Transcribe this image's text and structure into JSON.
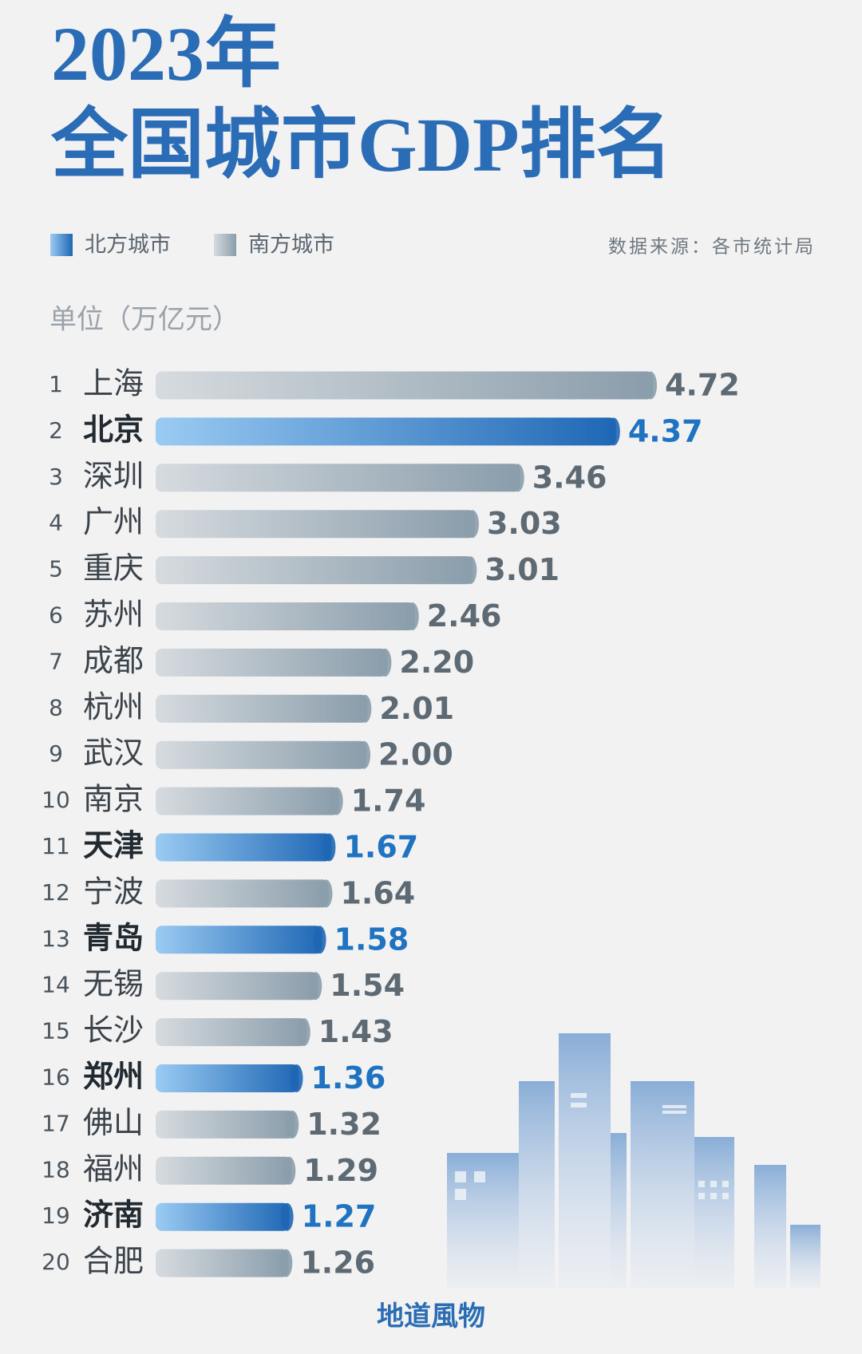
{
  "chart_data": {
    "type": "bar",
    "orientation": "horizontal",
    "title": "2023年",
    "subtitle": "全国城市GDP排名",
    "source": "数据来源：各市统计局",
    "unit": "单位（万亿元）",
    "credit": "地道風物",
    "ranks": [
      1,
      2,
      3,
      4,
      5,
      6,
      7,
      8,
      9,
      10,
      11,
      12,
      13,
      14,
      15,
      16,
      17,
      18,
      19,
      20
    ],
    "categories": [
      "上海",
      "北京",
      "深圳",
      "广州",
      "重庆",
      "苏州",
      "成都",
      "杭州",
      "武汉",
      "南京",
      "天津",
      "宁波",
      "青岛",
      "无锡",
      "长沙",
      "郑州",
      "佛山",
      "福州",
      "济南",
      "合肥"
    ],
    "series": [
      {
        "name": "北方城市",
        "color": "#1f67b5",
        "values": [
          null,
          4.37,
          null,
          null,
          null,
          null,
          null,
          null,
          null,
          null,
          1.67,
          null,
          1.58,
          null,
          null,
          1.36,
          null,
          null,
          1.27,
          null
        ]
      },
      {
        "name": "南方城市",
        "color": "#8a9dab",
        "values": [
          4.72,
          null,
          3.46,
          3.03,
          3.01,
          2.46,
          2.2,
          2.01,
          2.0,
          1.74,
          null,
          1.64,
          null,
          1.54,
          1.43,
          null,
          1.32,
          1.29,
          null,
          1.26
        ],
        "value_labels": [
          "4.72",
          null,
          "3.46",
          "3.03",
          "3.01",
          "2.46",
          "2.20",
          "2.01",
          "2.00",
          "1.74",
          null,
          "1.64",
          null,
          "1.54",
          "1.43",
          null,
          "1.32",
          "1.29",
          null,
          "1.26"
        ]
      }
    ]
  }
}
